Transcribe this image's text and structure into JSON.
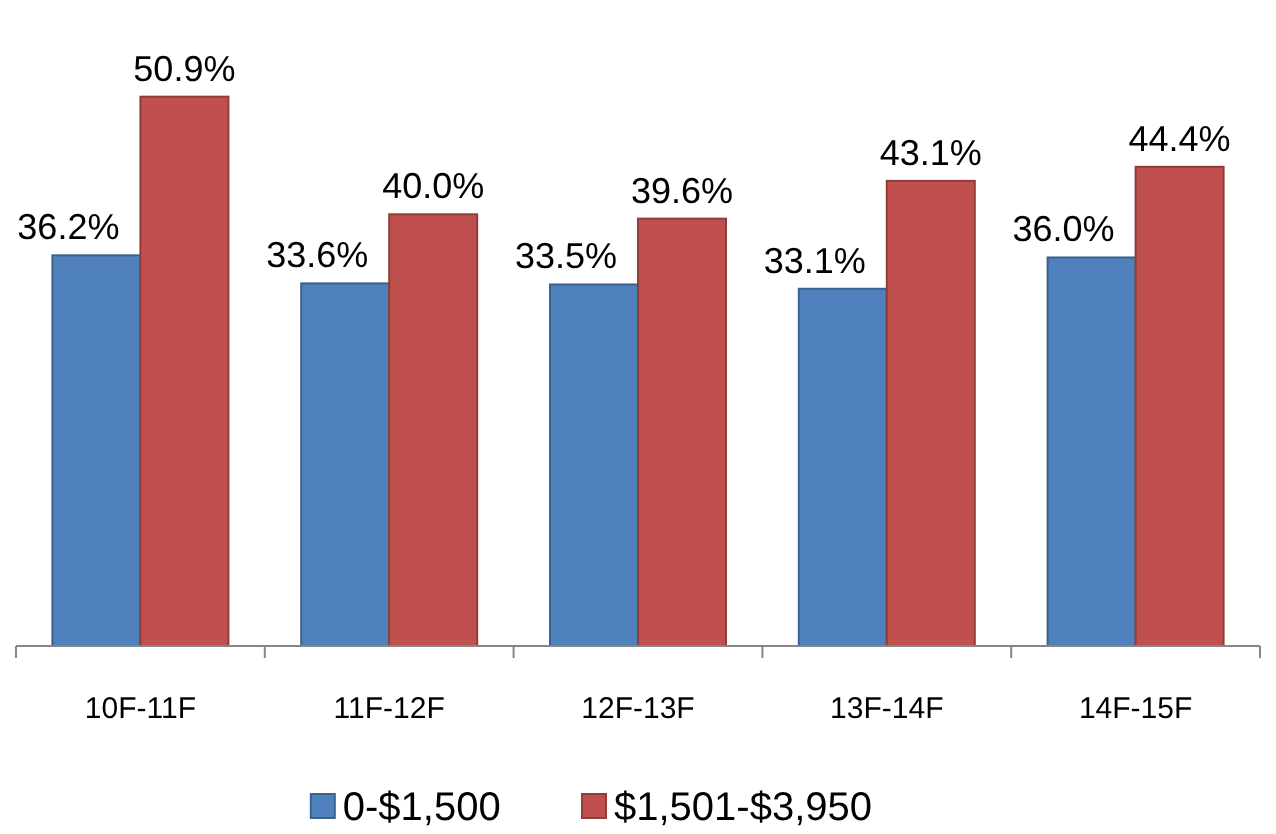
{
  "chart_data": {
    "type": "bar",
    "categories": [
      "10F-11F",
      "11F-12F",
      "12F-13F",
      "13F-14F",
      "14F-15F"
    ],
    "series": [
      {
        "name": "0-$1,500",
        "color": "#4f81bd",
        "values": [
          36.2,
          33.6,
          33.5,
          33.1,
          36.0
        ],
        "value_labels": [
          "36.2%",
          "33.6%",
          "33.5%",
          "33.1%",
          "36.0%"
        ]
      },
      {
        "name": "$1,501-$3,950",
        "color": "#c0504d",
        "values": [
          50.9,
          40.0,
          39.6,
          43.1,
          44.4
        ],
        "value_labels": [
          "50.9%",
          "40.0%",
          "39.6%",
          "43.1%",
          "44.4%"
        ]
      }
    ],
    "legend": "bottom",
    "tick_labels": "x"
  }
}
